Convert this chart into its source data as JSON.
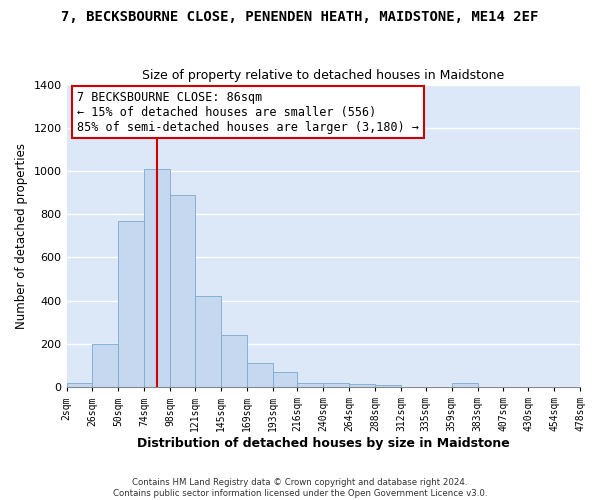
{
  "title": "7, BECKSBOURNE CLOSE, PENENDEN HEATH, MAIDSTONE, ME14 2EF",
  "subtitle": "Size of property relative to detached houses in Maidstone",
  "xlabel": "Distribution of detached houses by size in Maidstone",
  "ylabel": "Number of detached properties",
  "bin_edges": [
    2,
    26,
    50,
    74,
    98,
    121,
    145,
    169,
    193,
    216,
    240,
    264,
    288,
    312,
    335,
    359,
    383,
    407,
    430,
    454,
    478
  ],
  "bar_heights": [
    20,
    200,
    770,
    1010,
    890,
    420,
    240,
    110,
    70,
    20,
    20,
    15,
    10,
    0,
    0,
    20,
    0,
    0,
    0,
    0
  ],
  "bar_color": "#c5d8f0",
  "bar_edge_color": "#7aaad0",
  "vline_x": 86,
  "vline_color": "#cc0000",
  "annotation_title": "7 BECKSBOURNE CLOSE: 86sqm",
  "annotation_line1": "← 15% of detached houses are smaller (556)",
  "annotation_line2": "85% of semi-detached houses are larger (3,180) →",
  "annotation_box_color": "#ffffff",
  "annotation_box_edge_color": "#cc0000",
  "ylim": [
    0,
    1400
  ],
  "yticks": [
    0,
    200,
    400,
    600,
    800,
    1000,
    1200,
    1400
  ],
  "tick_labels": [
    "2sqm",
    "26sqm",
    "50sqm",
    "74sqm",
    "98sqm",
    "121sqm",
    "145sqm",
    "169sqm",
    "193sqm",
    "216sqm",
    "240sqm",
    "264sqm",
    "288sqm",
    "312sqm",
    "335sqm",
    "359sqm",
    "383sqm",
    "407sqm",
    "430sqm",
    "454sqm",
    "478sqm"
  ],
  "footer1": "Contains HM Land Registry data © Crown copyright and database right 2024.",
  "footer2": "Contains public sector information licensed under the Open Government Licence v3.0.",
  "fig_background": "#ffffff",
  "plot_background": "#dce8f8",
  "grid_color": "#ffffff",
  "title_fontsize": 10,
  "subtitle_fontsize": 9,
  "ylabel_fontsize": 8.5,
  "xlabel_fontsize": 9
}
